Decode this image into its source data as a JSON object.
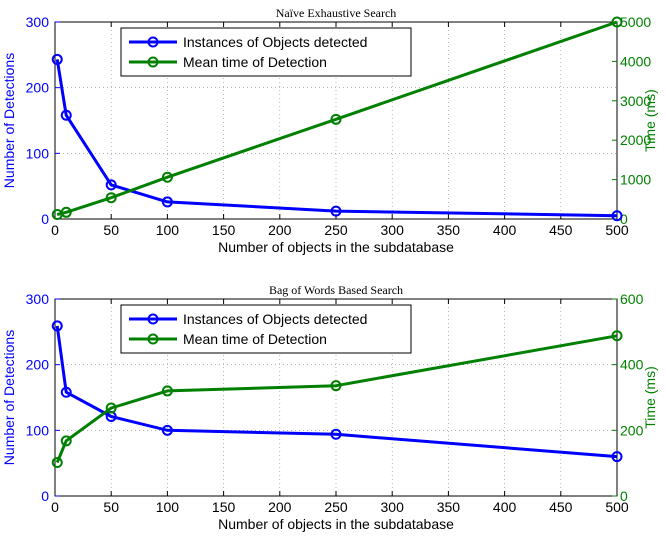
{
  "chart_data": [
    {
      "type": "line",
      "title": "Naïve Exhaustive Search",
      "xlabel": "Number of objects in the subdatabase",
      "ylabel": "Number of Detections",
      "y2label": "Time (ms)",
      "xlim": [
        0,
        500
      ],
      "ylim": [
        0,
        300
      ],
      "y2lim": [
        0,
        5000
      ],
      "xticks": [
        0,
        50,
        100,
        150,
        200,
        250,
        300,
        350,
        400,
        450,
        500
      ],
      "yticks": [
        0,
        100,
        200,
        300
      ],
      "y2ticks": [
        0,
        1000,
        2000,
        3000,
        4000,
        5000
      ],
      "grid": true,
      "legend_position": "top-left",
      "series": [
        {
          "name": "Instances of Objects detected",
          "axis": "left",
          "color": "#0000ff",
          "x": [
            2,
            10,
            50,
            100,
            250,
            500
          ],
          "values": [
            243,
            158,
            52,
            26,
            12,
            5
          ]
        },
        {
          "name": "Mean time of Detection",
          "axis": "right",
          "color": "#008000",
          "x": [
            2,
            10,
            50,
            100,
            250,
            500
          ],
          "values": [
            115,
            170,
            540,
            1060,
            2530,
            5000
          ]
        }
      ]
    },
    {
      "type": "line",
      "title": "Bag of Words Based Search",
      "xlabel": "Number of objects in the subdatabase",
      "ylabel": "Number of Detections",
      "y2label": "Time (ms)",
      "xlim": [
        0,
        500
      ],
      "ylim": [
        0,
        300
      ],
      "y2lim": [
        0,
        600
      ],
      "xticks": [
        0,
        50,
        100,
        150,
        200,
        250,
        300,
        350,
        400,
        450,
        500
      ],
      "yticks": [
        0,
        100,
        200,
        300
      ],
      "y2ticks": [
        0,
        200,
        400,
        600
      ],
      "grid": true,
      "legend_position": "top-left",
      "series": [
        {
          "name": "Instances of Objects detected",
          "axis": "left",
          "color": "#0000ff",
          "x": [
            2,
            10,
            50,
            100,
            250,
            500
          ],
          "values": [
            259,
            158,
            121,
            100,
            94,
            60
          ]
        },
        {
          "name": "Mean time of Detection",
          "axis": "right",
          "color": "#008000",
          "x": [
            2,
            10,
            50,
            100,
            250,
            500
          ],
          "values": [
            102,
            168,
            268,
            320,
            336,
            488
          ]
        }
      ]
    }
  ]
}
